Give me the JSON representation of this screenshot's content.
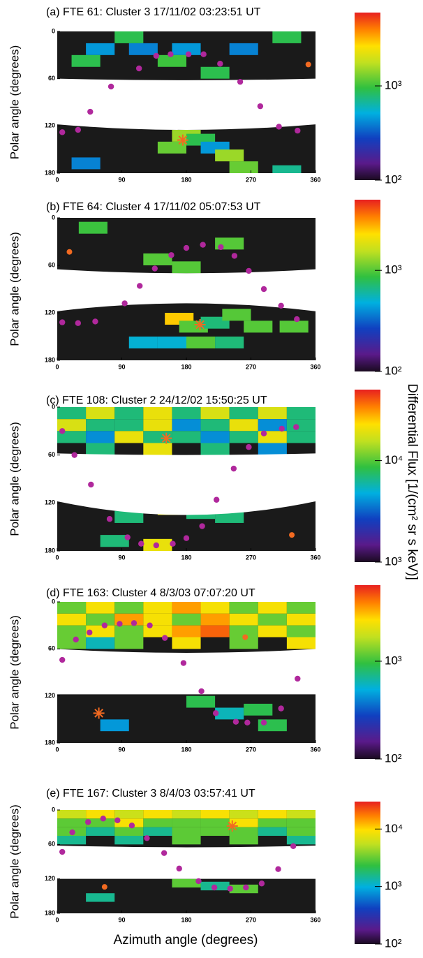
{
  "figure": {
    "x_label": "Azimuth angle (degrees)",
    "colorbar_label": "Differential Flux [1/(cm² sr s keV)]"
  },
  "chart_data": [
    {
      "type": "sky_map",
      "title": "(a) FTE 61: Cluster 3 17/11/02 03:23:51 UT",
      "y_label": "Polar angle (degrees)",
      "xlim": [
        0,
        360
      ],
      "xticks": [
        0,
        90,
        180,
        270,
        360
      ],
      "ylim": [
        0,
        180
      ],
      "y_inverted": true,
      "yticks": [
        0,
        60,
        120,
        180
      ],
      "colorscale": "log",
      "clim": [
        100,
        6000
      ],
      "cticks": [
        {
          "value": 100,
          "label": "10²"
        },
        {
          "value": 1000,
          "label": "10³"
        }
      ],
      "patches": [
        [
          40,
          15,
          450
        ],
        [
          80,
          0,
          900
        ],
        [
          100,
          15,
          400
        ],
        [
          160,
          15,
          450
        ],
        [
          140,
          30,
          1000
        ],
        [
          240,
          15,
          400
        ],
        [
          300,
          0,
          900
        ],
        [
          20,
          30,
          900
        ],
        [
          200,
          45,
          900
        ],
        [
          160,
          125,
          1500
        ],
        [
          180,
          130,
          900
        ],
        [
          140,
          140,
          1200
        ],
        [
          200,
          140,
          450
        ],
        [
          220,
          150,
          1500
        ],
        [
          20,
          160,
          400
        ],
        [
          240,
          165,
          1200
        ],
        [
          300,
          170,
          700
        ]
      ],
      "points": {
        "color": "#b0289c",
        "x": [
          7,
          29,
          46,
          75,
          114,
          138,
          158,
          183,
          204,
          227,
          255,
          283,
          309,
          335
        ],
        "y": [
          128,
          125,
          102,
          70,
          47,
          31,
          29,
          29,
          29,
          41,
          64,
          95,
          121,
          126
        ]
      },
      "star": {
        "color": "#f26a21",
        "x": 175,
        "y": 138
      },
      "dot": {
        "color": "#f26a21",
        "x": 350,
        "y": 42
      }
    },
    {
      "type": "sky_map",
      "title": "(b) FTE 64: Cluster 4 17/11/02 05:07:53 UT",
      "y_label": "Polar angle (degrees)",
      "xlim": [
        0,
        360
      ],
      "xticks": [
        0,
        90,
        180,
        270,
        360
      ],
      "ylim": [
        0,
        180
      ],
      "y_inverted": true,
      "yticks": [
        0,
        60,
        120,
        180
      ],
      "colorscale": "log",
      "clim": [
        100,
        5000
      ],
      "cticks": [
        {
          "value": 100,
          "label": "10²"
        },
        {
          "value": 1000,
          "label": "10³"
        }
      ],
      "patches": [
        [
          30,
          5,
          900
        ],
        [
          120,
          45,
          1000
        ],
        [
          160,
          55,
          1000
        ],
        [
          220,
          25,
          1000
        ],
        [
          150,
          120,
          2500
        ],
        [
          170,
          130,
          1000
        ],
        [
          200,
          125,
          700
        ],
        [
          230,
          115,
          1000
        ],
        [
          100,
          150,
          500
        ],
        [
          140,
          150,
          500
        ],
        [
          180,
          150,
          1000
        ],
        [
          220,
          150,
          700
        ],
        [
          260,
          130,
          1000
        ],
        [
          310,
          130,
          1000
        ]
      ],
      "points": {
        "color": "#b0289c",
        "x": [
          7,
          29,
          53,
          94,
          115,
          136,
          159,
          180,
          203,
          228,
          247,
          267,
          288,
          312,
          334
        ],
        "y": [
          132,
          133,
          131,
          108,
          86,
          64,
          47,
          38,
          34,
          37,
          48,
          67,
          90,
          111,
          128
        ]
      },
      "star": {
        "color": "#f26a21",
        "x": 199,
        "y": 135
      },
      "dot": {
        "color": "#f26a21",
        "x": 17,
        "y": 43
      }
    },
    {
      "type": "sky_map",
      "title": "(c) FTE 108: Cluster 2 24/12/02 15:50:25 UT",
      "y_label": "Polar angle (degrees)",
      "xlim": [
        0,
        360
      ],
      "xticks": [
        0,
        90,
        180,
        270,
        360
      ],
      "ylim": [
        0,
        180
      ],
      "y_inverted": true,
      "yticks": [
        0,
        60,
        120,
        180
      ],
      "colorscale": "log",
      "clim": [
        1000,
        50000
      ],
      "cticks": [
        {
          "value": 1000,
          "label": "10³"
        },
        {
          "value": 10000,
          "label": "10⁴"
        }
      ],
      "patches": [
        [
          0,
          0,
          7000
        ],
        [
          40,
          0,
          18000
        ],
        [
          80,
          0,
          7000
        ],
        [
          120,
          0,
          20000
        ],
        [
          160,
          0,
          7000
        ],
        [
          200,
          0,
          18000
        ],
        [
          240,
          0,
          7000
        ],
        [
          280,
          0,
          18000
        ],
        [
          320,
          0,
          7000
        ],
        [
          0,
          15,
          18000
        ],
        [
          40,
          15,
          7000
        ],
        [
          80,
          15,
          7000
        ],
        [
          120,
          15,
          20000
        ],
        [
          160,
          15,
          4000
        ],
        [
          200,
          15,
          7000
        ],
        [
          240,
          15,
          20000
        ],
        [
          280,
          15,
          4000
        ],
        [
          320,
          15,
          7000
        ],
        [
          0,
          30,
          7000
        ],
        [
          40,
          30,
          4000
        ],
        [
          80,
          30,
          20000
        ],
        [
          120,
          30,
          7000
        ],
        [
          160,
          30,
          7000
        ],
        [
          200,
          30,
          4000
        ],
        [
          240,
          30,
          7000
        ],
        [
          280,
          30,
          20000
        ],
        [
          320,
          30,
          7000
        ],
        [
          40,
          45,
          7000
        ],
        [
          120,
          45,
          20000
        ],
        [
          200,
          45,
          7000
        ],
        [
          280,
          45,
          4000
        ],
        [
          140,
          120,
          20000
        ],
        [
          180,
          125,
          7000
        ],
        [
          80,
          130,
          7000
        ],
        [
          220,
          130,
          7000
        ],
        [
          60,
          160,
          7000
        ],
        [
          120,
          165,
          20000
        ]
      ],
      "points": {
        "color": "#b0289c",
        "x": [
          7,
          24,
          47,
          73,
          98,
          117,
          138,
          161,
          180,
          202,
          222,
          246,
          267,
          288,
          313,
          333
        ],
        "y": [
          30,
          60,
          97,
          140,
          163,
          171,
          173,
          171,
          164,
          149,
          116,
          77,
          50,
          33,
          27,
          25
        ]
      },
      "star": {
        "color": "#f26a21",
        "x": 152,
        "y": 39
      },
      "dot": {
        "color": "#f26a21",
        "x": 327,
        "y": 160
      }
    },
    {
      "type": "sky_map",
      "title": "(d) FTE 163: Cluster 4 8/3/03 07:07:20 UT",
      "y_label": "Polar angle (degrees)",
      "xlim": [
        0,
        360
      ],
      "xticks": [
        0,
        90,
        180,
        270,
        360
      ],
      "ylim": [
        0,
        180
      ],
      "y_inverted": true,
      "yticks": [
        0,
        60,
        120,
        180
      ],
      "colorscale": "log",
      "clim": [
        100,
        6000
      ],
      "cticks": [
        {
          "value": 100,
          "label": "10²"
        },
        {
          "value": 1000,
          "label": "10³"
        }
      ],
      "patches": [
        [
          0,
          0,
          1200
        ],
        [
          40,
          0,
          2500
        ],
        [
          80,
          0,
          1200
        ],
        [
          120,
          0,
          2500
        ],
        [
          160,
          0,
          3500
        ],
        [
          200,
          0,
          2500
        ],
        [
          240,
          0,
          1200
        ],
        [
          280,
          0,
          2500
        ],
        [
          320,
          0,
          1200
        ],
        [
          0,
          15,
          2500
        ],
        [
          40,
          15,
          1200
        ],
        [
          80,
          15,
          3500
        ],
        [
          120,
          15,
          2500
        ],
        [
          160,
          15,
          1200
        ],
        [
          200,
          15,
          3500
        ],
        [
          240,
          15,
          2500
        ],
        [
          280,
          15,
          1200
        ],
        [
          320,
          15,
          2500
        ],
        [
          0,
          30,
          1200
        ],
        [
          40,
          30,
          2500
        ],
        [
          80,
          30,
          1200
        ],
        [
          120,
          30,
          2500
        ],
        [
          160,
          30,
          3500
        ],
        [
          200,
          30,
          4500
        ],
        [
          240,
          30,
          1200
        ],
        [
          280,
          30,
          2500
        ],
        [
          320,
          30,
          1200
        ],
        [
          0,
          45,
          1200
        ],
        [
          40,
          45,
          600
        ],
        [
          80,
          45,
          1200
        ],
        [
          160,
          45,
          2500
        ],
        [
          240,
          45,
          1200
        ],
        [
          320,
          45,
          2500
        ],
        [
          180,
          120,
          900
        ],
        [
          220,
          135,
          600
        ],
        [
          260,
          130,
          900
        ],
        [
          60,
          150,
          450
        ],
        [
          280,
          150,
          900
        ]
      ],
      "points": {
        "color": "#b0289c",
        "x": [
          7,
          26,
          45,
          66,
          87,
          107,
          129,
          150,
          176,
          201,
          221,
          249,
          265,
          288,
          312,
          335
        ],
        "y": [
          74,
          48,
          39,
          30,
          28,
          27,
          30,
          46,
          78,
          114,
          142,
          153,
          154,
          154,
          136,
          98
        ]
      },
      "star": {
        "color": "#f26a21",
        "x": 58,
        "y": 142
      },
      "dot": {
        "color": "#f26a21",
        "x": 262,
        "y": 45
      }
    },
    {
      "type": "sky_map",
      "title": "(e) FTE 167: Cluster 3 8/4/03 03:57:41 UT",
      "y_label": "Polar angle (degrees)",
      "xlim": [
        0,
        360
      ],
      "xticks": [
        0,
        90,
        180,
        270,
        360
      ],
      "ylim": [
        0,
        180
      ],
      "y_inverted": true,
      "yticks": [
        0,
        60,
        120,
        180
      ],
      "colorscale": "log",
      "clim": [
        100,
        30000
      ],
      "cticks": [
        {
          "value": 100,
          "label": "10²"
        },
        {
          "value": 1000,
          "label": "10³"
        },
        {
          "value": 10000,
          "label": "10⁴"
        }
      ],
      "patches": [
        [
          0,
          0,
          6000
        ],
        [
          40,
          0,
          9000
        ],
        [
          80,
          0,
          6000
        ],
        [
          120,
          0,
          9000
        ],
        [
          160,
          0,
          6000
        ],
        [
          200,
          0,
          9000
        ],
        [
          240,
          0,
          6000
        ],
        [
          280,
          0,
          9000
        ],
        [
          320,
          0,
          6000
        ],
        [
          0,
          15,
          3000
        ],
        [
          40,
          15,
          3000
        ],
        [
          80,
          15,
          9000
        ],
        [
          120,
          15,
          3000
        ],
        [
          160,
          15,
          3000
        ],
        [
          200,
          15,
          3000
        ],
        [
          240,
          15,
          9000
        ],
        [
          280,
          15,
          3000
        ],
        [
          320,
          15,
          3000
        ],
        [
          0,
          30,
          3000
        ],
        [
          40,
          30,
          1500
        ],
        [
          80,
          30,
          3000
        ],
        [
          120,
          30,
          1500
        ],
        [
          160,
          30,
          3000
        ],
        [
          200,
          30,
          3000
        ],
        [
          240,
          30,
          3000
        ],
        [
          280,
          30,
          1500
        ],
        [
          320,
          30,
          3000
        ],
        [
          0,
          45,
          1500
        ],
        [
          80,
          45,
          1500
        ],
        [
          160,
          45,
          3000
        ],
        [
          240,
          45,
          3000
        ],
        [
          320,
          45,
          1500
        ],
        [
          160,
          120,
          3000
        ],
        [
          200,
          125,
          1500
        ],
        [
          240,
          130,
          3000
        ],
        [
          40,
          145,
          1500
        ]
      ],
      "points": {
        "color": "#b0289c",
        "x": [
          7,
          21,
          43,
          64,
          84,
          104,
          125,
          149,
          170,
          197,
          219,
          241,
          263,
          285,
          308,
          329
        ],
        "y": [
          73,
          39,
          21,
          15,
          18,
          27,
          49,
          75,
          102,
          124,
          135,
          137,
          135,
          128,
          103,
          63
        ]
      },
      "star": {
        "color": "#f26a21",
        "x": 244,
        "y": 28
      },
      "dot": {
        "color": "#f26a21",
        "x": 66,
        "y": 134
      }
    }
  ]
}
